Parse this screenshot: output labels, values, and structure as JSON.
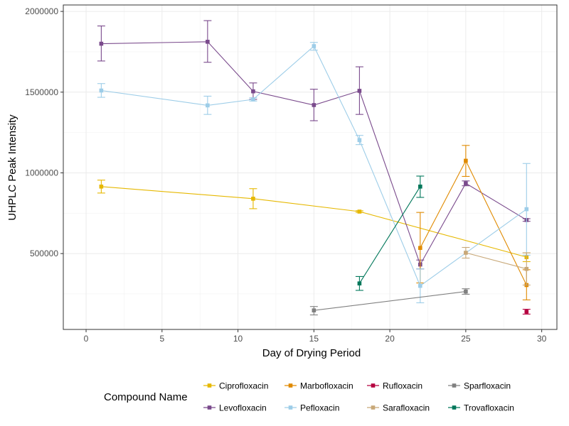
{
  "chart_data": {
    "type": "line",
    "title": "",
    "xlabel": "Day of Drying Period",
    "ylabel": "UHPLC Peak Intensity",
    "xlim": [
      -1.5,
      31
    ],
    "ylim": [
      30000,
      2040000
    ],
    "x_ticks": [
      0,
      5,
      10,
      15,
      20,
      25,
      30
    ],
    "x_tick_labels": [
      "0",
      "5",
      "10",
      "15",
      "20",
      "25",
      "30"
    ],
    "y_ticks": [
      500000,
      1000000,
      1500000,
      2000000
    ],
    "y_tick_labels": [
      "500000",
      "1000000",
      "1500000",
      "2000000"
    ],
    "grid": true,
    "legend": {
      "title": "Compound Name",
      "position": "bottom"
    },
    "series": [
      {
        "name": "Ciprofloxacin",
        "color": "#E6B800",
        "x": [
          1,
          11,
          18,
          29
        ],
        "y": [
          915000,
          840000,
          760000,
          478000
        ],
        "err_low": [
          875000,
          778000,
          755000,
          450000
        ],
        "err_high": [
          955000,
          902000,
          765000,
          505000
        ]
      },
      {
        "name": "Levofloxacin",
        "color": "#7A4A8C",
        "x": [
          1,
          8,
          11,
          15,
          18,
          22,
          25,
          29
        ],
        "y": [
          1800000,
          1812000,
          1505000,
          1420000,
          1508000,
          432000,
          935000,
          708000
        ],
        "err_low": [
          1693000,
          1685000,
          1455000,
          1323000,
          1362000,
          405000,
          920000,
          700000
        ],
        "err_high": [
          1910000,
          1943000,
          1557000,
          1518000,
          1657000,
          460000,
          950000,
          716000
        ]
      },
      {
        "name": "Marbofloxacin",
        "color": "#E08A00",
        "x": [
          22,
          25,
          29
        ],
        "y": [
          535000,
          1075000,
          305000
        ],
        "err_low": [
          318000,
          978000,
          213000
        ],
        "err_high": [
          755000,
          1170000,
          400000
        ]
      },
      {
        "name": "Pefloxacin",
        "color": "#9DCDE8",
        "x": [
          1,
          8,
          11,
          15,
          18,
          22,
          29
        ],
        "y": [
          1510000,
          1418000,
          1455000,
          1785000,
          1203000,
          300000,
          775000
        ],
        "err_low": [
          1468000,
          1362000,
          1445000,
          1760000,
          1175000,
          195000,
          490000
        ],
        "err_high": [
          1553000,
          1475000,
          1465000,
          1808000,
          1232000,
          405000,
          1058000
        ]
      },
      {
        "name": "Rufloxacin",
        "color": "#B5003F",
        "x": [
          29
        ],
        "y": [
          140000
        ],
        "err_low": [
          125000
        ],
        "err_high": [
          155000
        ]
      },
      {
        "name": "Sarafloxacin",
        "color": "#C8A878",
        "x": [
          25,
          29
        ],
        "y": [
          505000,
          405000
        ],
        "err_low": [
          472000,
          305000
        ],
        "err_high": [
          538000,
          505000
        ]
      },
      {
        "name": "Sparfloxacin",
        "color": "#808080",
        "x": [
          15,
          25
        ],
        "y": [
          148000,
          265000
        ],
        "err_low": [
          120000,
          248000
        ],
        "err_high": [
          172000,
          282000
        ]
      },
      {
        "name": "Trovafloxacin",
        "color": "#00775A",
        "x": [
          18,
          22
        ],
        "y": [
          315000,
          915000
        ],
        "err_low": [
          272000,
          848000
        ],
        "err_high": [
          358000,
          980000
        ]
      }
    ]
  }
}
